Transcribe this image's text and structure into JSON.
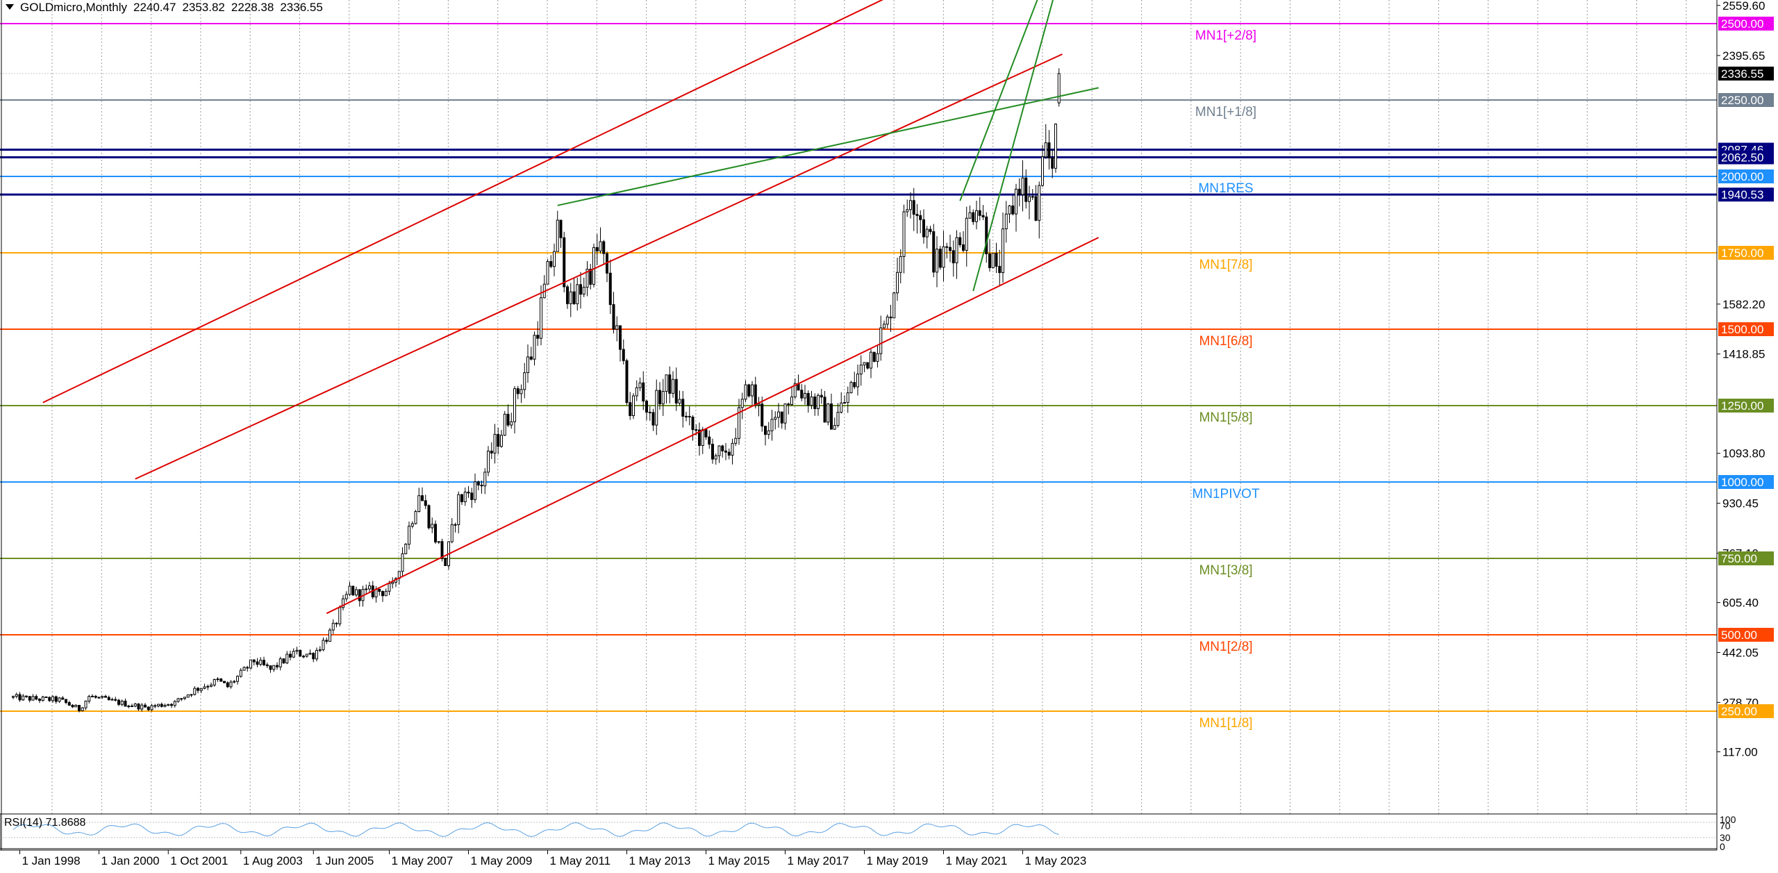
{
  "header": {
    "symbol_timeframe": "GOLDmicro,Monthly",
    "open": "2240.47",
    "high": "2353.82",
    "low": "2228.38",
    "close": "2336.55"
  },
  "rsi": {
    "label": "RSI(14) 71.8688",
    "scale": [
      "100",
      "70",
      "30",
      "0"
    ]
  },
  "price_axis": {
    "ticks": [
      "2559.60",
      "2395.65",
      "1582.20",
      "1418.85",
      "1093.80",
      "930.45",
      "767.10",
      "605.40",
      "442.05",
      "278.70",
      "117.00"
    ],
    "current_price": "2336.55"
  },
  "time_axis": {
    "labels": [
      "1 Jan 1998",
      "1 Jan 2000",
      "1 Oct 2001",
      "1 Aug 2003",
      "1 Jun 2005",
      "1 May 2007",
      "1 May 2009",
      "1 May 2011",
      "1 May 2013",
      "1 May 2015",
      "1 May 2017",
      "1 May 2019",
      "1 May 2021",
      "1 May 2023"
    ]
  },
  "colors": {
    "murrey_pink": "#ee00ee",
    "murrey_gray": "#708090",
    "murrey_blue": "#1e90ff",
    "murrey_orange": "#ffa500",
    "murrey_orangered": "#ff4500",
    "murrey_olive": "#6b8e23",
    "sr_navy": "#000080",
    "channel_red": "#dd0000",
    "channel_green": "#228b22",
    "candle": "#000000"
  },
  "chart_data": {
    "type": "candlestick",
    "title": "GOLDmicro,Monthly",
    "ylim": [
      0,
      2650
    ],
    "xlim": [
      "1997-11",
      "2024-12"
    ],
    "grid": "vertical dotted",
    "murrey_levels": [
      {
        "label": "MN1[+2/8]",
        "price": 2500.0,
        "tag": "2500.00",
        "color": "#ee00ee"
      },
      {
        "label": "MN1[+1/8]",
        "price": 2250.0,
        "tag": "2250.00",
        "color": "#708090"
      },
      {
        "label": "MN1RES",
        "price": 2000.0,
        "tag": "2000.00",
        "color": "#1e90ff"
      },
      {
        "label": "MN1[7/8]",
        "price": 1750.0,
        "tag": "1750.00",
        "color": "#ffa500"
      },
      {
        "label": "MN1[6/8]",
        "price": 1500.0,
        "tag": "1500.00",
        "color": "#ff4500"
      },
      {
        "label": "MN1[5/8]",
        "price": 1250.0,
        "tag": "1250.00",
        "color": "#6b8e23"
      },
      {
        "label": "MN1PIVOT",
        "price": 1000.0,
        "tag": "1000.00",
        "color": "#1e90ff"
      },
      {
        "label": "MN1[3/8]",
        "price": 750.0,
        "tag": "750.00",
        "color": "#6b8e23"
      },
      {
        "label": "MN1[2/8]",
        "price": 500.0,
        "tag": "500.00",
        "color": "#ff4500"
      },
      {
        "label": "MN1[1/8]",
        "price": 250.0,
        "tag": "250.00",
        "color": "#ffa500"
      }
    ],
    "support_resistance": [
      {
        "price": 2087.46,
        "tag": "2087.46",
        "color": "#000080"
      },
      {
        "price": 2062.5,
        "tag": "2062.50",
        "color": "#000080"
      },
      {
        "price": 1940.53,
        "tag": "1940.53",
        "color": "#000080"
      }
    ],
    "trendlines": [
      {
        "name": "red-upper-channel",
        "color": "#dd0000",
        "points": [
          [
            "1998-08",
            1260
          ],
          [
            "2021-10",
            2700
          ]
        ]
      },
      {
        "name": "red-middle-channel",
        "color": "#dd0000",
        "points": [
          [
            "2000-12",
            1010
          ],
          [
            "2024-05",
            2400
          ]
        ]
      },
      {
        "name": "red-lower-channel",
        "color": "#dd0000",
        "points": [
          [
            "2005-10",
            570
          ],
          [
            "2025-04",
            1800
          ]
        ]
      },
      {
        "name": "green-long-trend",
        "color": "#228b22",
        "points": [
          [
            "2011-08",
            1905
          ],
          [
            "2025-04",
            2290
          ]
        ]
      },
      {
        "name": "green-channel-upper",
        "color": "#228b22",
        "points": [
          [
            "2021-10",
            1920
          ],
          [
            "2023-12",
            2650
          ]
        ]
      },
      {
        "name": "green-channel-lower",
        "color": "#228b22",
        "points": [
          [
            "2022-02",
            1625
          ],
          [
            "2024-04",
            2650
          ]
        ]
      }
    ],
    "anchors": [
      [
        "1997-11",
        295
      ],
      [
        "1998-06",
        290
      ],
      [
        "1999-01",
        287
      ],
      [
        "1999-07",
        256
      ],
      [
        "1999-10",
        299
      ],
      [
        "2000-06",
        280
      ],
      [
        "2001-03",
        262
      ],
      [
        "2001-12",
        278
      ],
      [
        "2002-06",
        320
      ],
      [
        "2003-01",
        350
      ],
      [
        "2003-04",
        330
      ],
      [
        "2003-12",
        415
      ],
      [
        "2004-05",
        385
      ],
      [
        "2004-12",
        440
      ],
      [
        "2005-06",
        435
      ],
      [
        "2005-12",
        520
      ],
      [
        "2006-05",
        650
      ],
      [
        "2006-07",
        632
      ],
      [
        "2007-06",
        650
      ],
      [
        "2008-02",
        970
      ],
      [
        "2008-10",
        730
      ],
      [
        "2009-02",
        940
      ],
      [
        "2009-09",
        1000
      ],
      [
        "2009-12",
        1100
      ],
      [
        "2010-06",
        1240
      ],
      [
        "2010-12",
        1420
      ],
      [
        "2011-08",
        1820
      ],
      [
        "2011-12",
        1570
      ],
      [
        "2012-09",
        1770
      ],
      [
        "2013-06",
        1230
      ],
      [
        "2013-09",
        1330
      ],
      [
        "2013-12",
        1200
      ],
      [
        "2014-03",
        1285
      ],
      [
        "2014-06",
        1325
      ],
      [
        "2014-12",
        1180
      ],
      [
        "2015-11",
        1065
      ],
      [
        "2016-06",
        1320
      ],
      [
        "2016-12",
        1150
      ],
      [
        "2017-08",
        1320
      ],
      [
        "2018-08",
        1200
      ],
      [
        "2019-06",
        1410
      ],
      [
        "2019-12",
        1515
      ],
      [
        "2020-07",
        1970
      ],
      [
        "2021-03",
        1710
      ],
      [
        "2021-12",
        1830
      ],
      [
        "2022-03",
        1940
      ],
      [
        "2022-09",
        1660
      ],
      [
        "2022-12",
        1825
      ],
      [
        "2023-04",
        1990
      ],
      [
        "2023-09",
        1870
      ],
      [
        "2023-12",
        2065
      ],
      [
        "2024-02",
        2045
      ],
      [
        "2024-03",
        2232
      ],
      [
        "2024-04",
        2336.55
      ]
    ]
  }
}
